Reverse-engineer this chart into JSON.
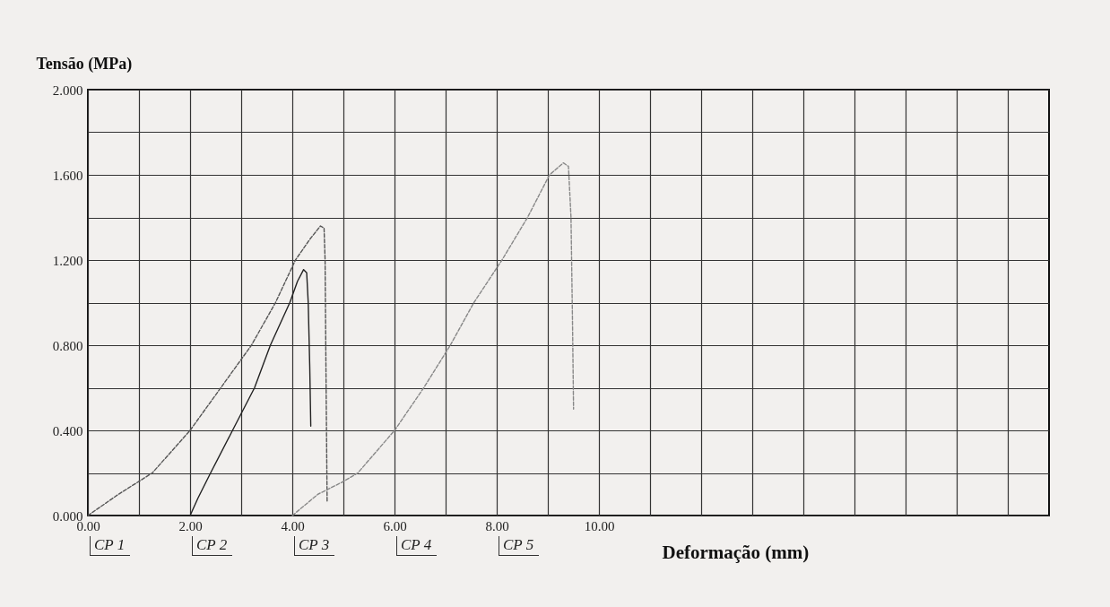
{
  "chart_data": {
    "type": "line",
    "xlabel": "Deformação (mm)",
    "ylabel": "Tensão (MPa)",
    "xlim": [
      0,
      18.8
    ],
    "xticks": [
      {
        "value": 0,
        "label": "0.00"
      },
      {
        "value": 1,
        "label": null
      },
      {
        "value": 2,
        "label": "2.00"
      },
      {
        "value": 3,
        "label": null
      },
      {
        "value": 4,
        "label": "4.00"
      },
      {
        "value": 5,
        "label": null
      },
      {
        "value": 6,
        "label": "6.00"
      },
      {
        "value": 7,
        "label": null
      },
      {
        "value": 8,
        "label": "8.00"
      },
      {
        "value": 9,
        "label": null
      },
      {
        "value": 10,
        "label": "10.00"
      },
      {
        "value": 11,
        "label": null
      },
      {
        "value": 12,
        "label": null
      },
      {
        "value": 13,
        "label": null
      },
      {
        "value": 14,
        "label": null
      },
      {
        "value": 15,
        "label": null
      },
      {
        "value": 16,
        "label": null
      },
      {
        "value": 17,
        "label": null
      },
      {
        "value": 18,
        "label": null
      }
    ],
    "ylim": [
      0,
      2
    ],
    "yticks": [
      {
        "value": 0,
        "label": "0.000"
      },
      {
        "value": 0.2,
        "label": null
      },
      {
        "value": 0.4,
        "label": "0.400"
      },
      {
        "value": 0.6,
        "label": null
      },
      {
        "value": 0.8,
        "label": "0.800"
      },
      {
        "value": 1,
        "label": null
      },
      {
        "value": 1.2,
        "label": "1.200"
      },
      {
        "value": 1.4,
        "label": null
      },
      {
        "value": 1.6,
        "label": "1.600"
      },
      {
        "value": 1.8,
        "label": null
      },
      {
        "value": 2,
        "label": "2.000"
      }
    ],
    "grid": true,
    "series": [
      {
        "color": "#555555",
        "line_style": "dashed",
        "x": [
          0,
          0.6,
          1.26,
          2.0,
          2.6,
          3.2,
          3.67,
          4.06,
          4.35,
          4.55,
          4.62,
          4.64,
          4.66,
          4.68
        ],
        "values": [
          0,
          0.1,
          0.2,
          0.4,
          0.6,
          0.8,
          1.0,
          1.2,
          1.3,
          1.36,
          1.35,
          1.2,
          0.6,
          0.06
        ]
      },
      {
        "color": "#222222",
        "line_style": "solid",
        "x": [
          2.0,
          2.15,
          2.4,
          2.83,
          3.26,
          3.57,
          3.95,
          4.1,
          4.22,
          4.28,
          4.31,
          4.34,
          4.36
        ],
        "values": [
          0,
          0.08,
          0.2,
          0.4,
          0.6,
          0.8,
          1.0,
          1.1,
          1.155,
          1.14,
          1.0,
          0.7,
          0.42
        ]
      },
      {
        "color": "#888888",
        "line_style": "dashed",
        "x": [
          4.0,
          4.5,
          5.0,
          5.28,
          6.0,
          6.57,
          7.09,
          7.55,
          8.1,
          8.6,
          9.03,
          9.3,
          9.4,
          9.45,
          9.48,
          9.5
        ],
        "values": [
          0,
          0.1,
          0.16,
          0.2,
          0.4,
          0.6,
          0.8,
          1.0,
          1.2,
          1.4,
          1.6,
          1.656,
          1.64,
          1.4,
          0.9,
          0.5
        ]
      }
    ],
    "annotations": [
      "CP 1",
      "CP 2",
      "CP 3",
      "CP 4",
      "CP 5"
    ]
  }
}
